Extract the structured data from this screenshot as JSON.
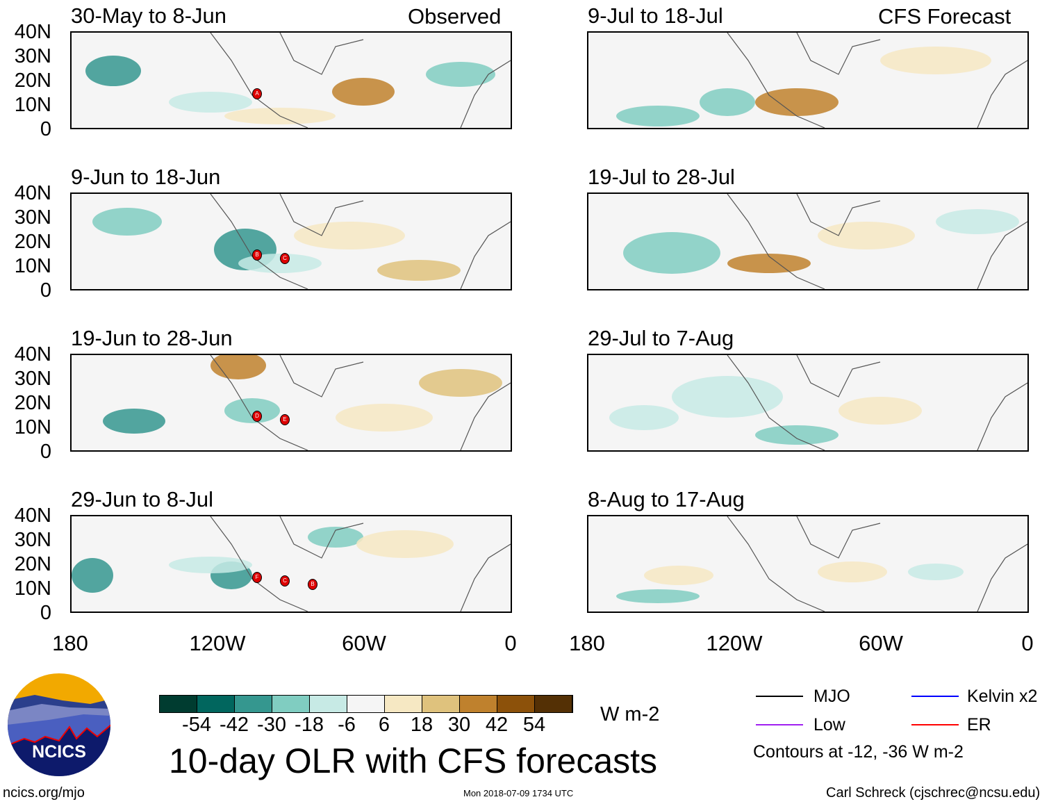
{
  "header": {
    "left_label": "Observed",
    "right_label": "CFS Forecast"
  },
  "panels_left": [
    {
      "title": "30-May to 8-Jun",
      "storms": [
        "A"
      ]
    },
    {
      "title": "9-Jun to 18-Jun",
      "storms": [
        "B",
        "C"
      ]
    },
    {
      "title": "19-Jun to 28-Jun",
      "storms": [
        "D",
        "E"
      ]
    },
    {
      "title": "29-Jun to 8-Jul",
      "storms": [
        "F",
        "C",
        "B"
      ]
    }
  ],
  "panels_right": [
    {
      "title": "9-Jul to 18-Jul"
    },
    {
      "title": "19-Jul to 28-Jul"
    },
    {
      "title": "29-Jul to 7-Aug"
    },
    {
      "title": "8-Aug to 17-Aug"
    }
  ],
  "lat_labels": [
    "40N",
    "30N",
    "20N",
    "10N",
    "0"
  ],
  "lon_labels": [
    "180",
    "120W",
    "60W",
    "0"
  ],
  "colorbar": {
    "colors": [
      "#003c30",
      "#01665e",
      "#35978f",
      "#80cdc1",
      "#c7eae5",
      "#f5f5f5",
      "#f6e8c3",
      "#dfc27d",
      "#bf812d",
      "#8c510a",
      "#543005"
    ],
    "labels": [
      "-54",
      "-42",
      "-30",
      "-18",
      "-6",
      "6",
      "18",
      "30",
      "42",
      "54"
    ],
    "units": "W m-2"
  },
  "main_title": "10-day OLR with CFS forecasts",
  "legend": {
    "items": [
      {
        "label": "MJO",
        "color": "#000000"
      },
      {
        "label": "Kelvin x2",
        "color": "#0000ff"
      },
      {
        "label": "Low",
        "color": "#a020f0"
      },
      {
        "label": "ER",
        "color": "#ff0000"
      }
    ],
    "note": "Contours at -12, -36 W m-2"
  },
  "logo": {
    "text": "NCICS"
  },
  "footer": {
    "url": "ncics.org/mjo",
    "timestamp": "Mon 2018-07-09 1734 UTC",
    "credit": "Carl Schreck (cjschrec@ncsu.edu)"
  }
}
